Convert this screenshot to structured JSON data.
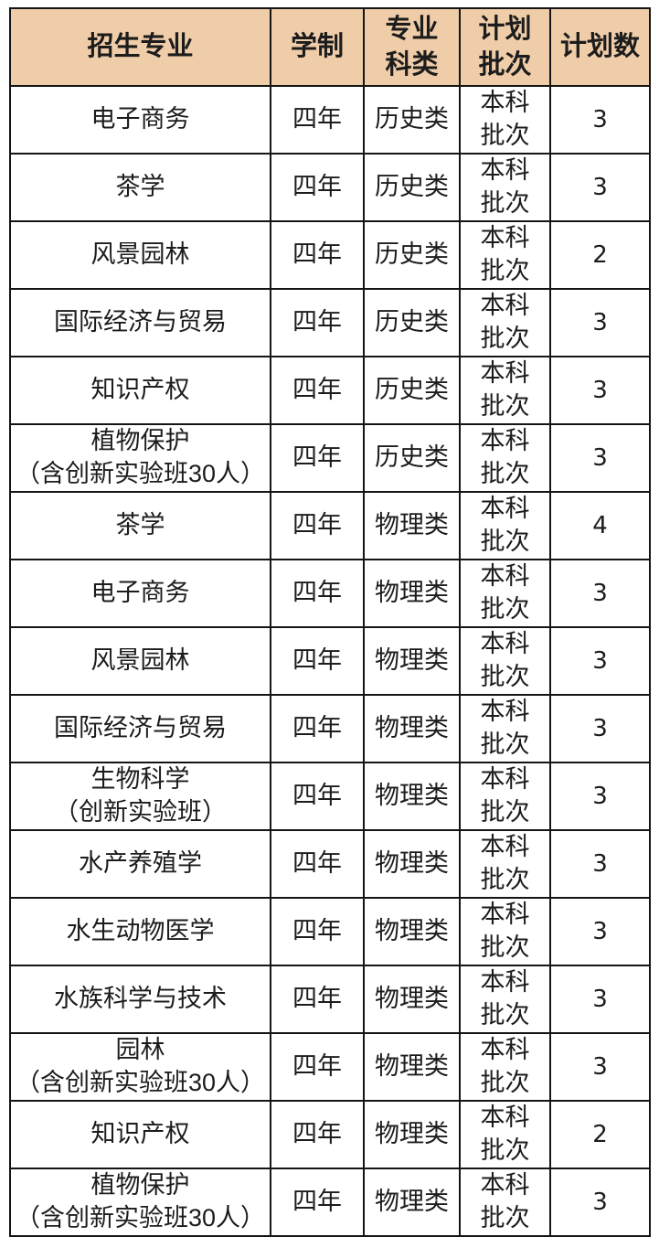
{
  "colors": {
    "header_bg": "#F0CDA9",
    "border": "#141414",
    "text": "#1C1C1C",
    "page_bg": "#FFFFFF"
  },
  "table": {
    "headers": [
      "招生专业",
      "学制",
      "专业\n科类",
      "计划\n批次",
      "计划数"
    ],
    "rows": [
      [
        "电子商务",
        "四年",
        "历史类",
        "本科\n批次",
        "3"
      ],
      [
        "茶学",
        "四年",
        "历史类",
        "本科\n批次",
        "3"
      ],
      [
        "风景园林",
        "四年",
        "历史类",
        "本科\n批次",
        "2"
      ],
      [
        "国际经济与贸易",
        "四年",
        "历史类",
        "本科\n批次",
        "3"
      ],
      [
        "知识产权",
        "四年",
        "历史类",
        "本科\n批次",
        "3"
      ],
      [
        "植物保护\n（含创新实验班30人）",
        "四年",
        "历史类",
        "本科\n批次",
        "3"
      ],
      [
        "茶学",
        "四年",
        "物理类",
        "本科\n批次",
        "4"
      ],
      [
        "电子商务",
        "四年",
        "物理类",
        "本科\n批次",
        "3"
      ],
      [
        "风景园林",
        "四年",
        "物理类",
        "本科\n批次",
        "3"
      ],
      [
        "国际经济与贸易",
        "四年",
        "物理类",
        "本科\n批次",
        "3"
      ],
      [
        "生物科学\n（创新实验班）",
        "四年",
        "物理类",
        "本科\n批次",
        "3"
      ],
      [
        "水产养殖学",
        "四年",
        "物理类",
        "本科\n批次",
        "3"
      ],
      [
        "水生动物医学",
        "四年",
        "物理类",
        "本科\n批次",
        "3"
      ],
      [
        "水族科学与技术",
        "四年",
        "物理类",
        "本科\n批次",
        "3"
      ],
      [
        "园林\n（含创新实验班30人）",
        "四年",
        "物理类",
        "本科\n批次",
        "3"
      ],
      [
        "知识产权",
        "四年",
        "物理类",
        "本科\n批次",
        "2"
      ],
      [
        "植物保护\n（含创新实验班30人）",
        "四年",
        "物理类",
        "本科\n批次",
        "3"
      ]
    ]
  }
}
